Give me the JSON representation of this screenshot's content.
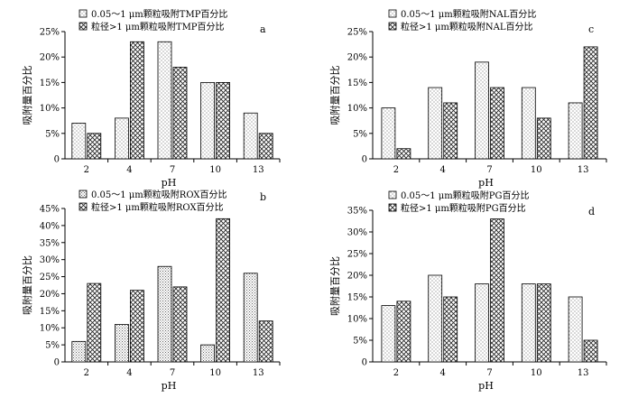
{
  "chart_data": [
    {
      "type": "bar",
      "panel_label": "a",
      "categories": [
        "2",
        "4",
        "7",
        "10",
        "13"
      ],
      "series": [
        {
          "name": "0.05～1 μm颗粒吸附TMP百分比",
          "values": [
            7,
            8,
            23,
            15,
            9
          ]
        },
        {
          "name": "粒径>1 μm颗粒吸附TMP百分比",
          "values": [
            5,
            23,
            18,
            15,
            5
          ]
        }
      ],
      "xlabel": "pH",
      "ylabel": "吸附量百分比",
      "ylim": [
        0,
        25
      ],
      "yticks": [
        "0",
        "5%",
        "10%",
        "15%",
        "20%",
        "25%"
      ],
      "grid": false,
      "legend_position": "top-left"
    },
    {
      "type": "bar",
      "panel_label": "c",
      "categories": [
        "2",
        "4",
        "7",
        "10",
        "13"
      ],
      "series": [
        {
          "name": "0.05～1 μm颗粒吸附NAL百分比",
          "values": [
            10,
            14,
            19,
            14,
            11
          ]
        },
        {
          "name": "粒径>1 μm颗粒吸附NAL百分比",
          "values": [
            2,
            11,
            14,
            8,
            22
          ]
        }
      ],
      "xlabel": "pH",
      "ylabel": "吸附量百分比",
      "ylim": [
        0,
        25
      ],
      "yticks": [
        "0",
        "5%",
        "10%",
        "15%",
        "20%",
        "25%"
      ],
      "grid": false,
      "legend_position": "top-left"
    },
    {
      "type": "bar",
      "panel_label": "b",
      "categories": [
        "2",
        "4",
        "7",
        "10",
        "13"
      ],
      "series": [
        {
          "name": "0.05～1 μm颗粒吸附ROX百分比",
          "values": [
            6,
            11,
            28,
            5,
            26
          ]
        },
        {
          "name": "粒径>1 μm颗粒吸附ROX百分比",
          "values": [
            23,
            21,
            22,
            42,
            12
          ]
        }
      ],
      "xlabel": "pH",
      "ylabel": "吸附量百分比",
      "ylim": [
        0,
        45
      ],
      "yticks": [
        "0",
        "5%",
        "10%",
        "15%",
        "20%",
        "25%",
        "30%",
        "35%",
        "40%",
        "45%"
      ],
      "grid": false,
      "legend_position": "top-left"
    },
    {
      "type": "bar",
      "panel_label": "d",
      "categories": [
        "2",
        "4",
        "7",
        "10",
        "13"
      ],
      "series": [
        {
          "name": "0.05～1 μm颗粒吸附PG百分比",
          "values": [
            13,
            20,
            18,
            18,
            15
          ]
        },
        {
          "name": "粒径>1 μm颗粒吸附PG百分比",
          "values": [
            14,
            15,
            33,
            18,
            5
          ]
        }
      ],
      "xlabel": "pH",
      "ylabel": "吸附量百分比",
      "ylim": [
        0,
        35
      ],
      "yticks": [
        "0",
        "5%",
        "10%",
        "15%",
        "20%",
        "25%",
        "30%",
        "35%"
      ],
      "grid": false,
      "legend_position": "top-left"
    }
  ]
}
